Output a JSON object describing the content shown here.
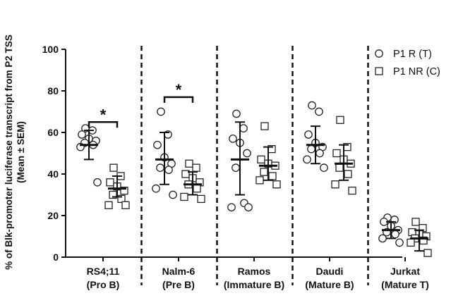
{
  "chart_data": {
    "type": "scatter",
    "title": "",
    "ylabel_lines": [
      "% of Blk-promoter luciferase transcript from P2 TSS",
      "(Mean ± SEM)"
    ],
    "ylim": [
      0,
      100
    ],
    "yticks": [
      "0",
      "20",
      "40",
      "60",
      "80",
      "100"
    ],
    "categories": [
      {
        "line1": "RS4;11",
        "line2": "(Pro B)"
      },
      {
        "line1": "Nalm-6",
        "line2": "(Pre B)"
      },
      {
        "line1": "Ramos",
        "line2": "(Immature B)"
      },
      {
        "line1": "Daudi",
        "line2": "(Mature B)"
      },
      {
        "line1": "Jurkat",
        "line2": "(Mature T)"
      }
    ],
    "legend_position": "top-right",
    "grid": false,
    "series": [
      {
        "name": "P1 R (T)",
        "marker": "circle",
        "groups": [
          {
            "mean": 54,
            "err": [
              47,
              61
            ],
            "points": [
              62,
              61,
              59,
              57,
              56,
              55,
              54,
              53,
              36
            ]
          },
          {
            "mean": 47,
            "err": [
              35,
              60
            ],
            "points": [
              70,
              59,
              54,
              48,
              45,
              43,
              42,
              33,
              30
            ]
          },
          {
            "mean": 47,
            "err": [
              30,
              65
            ],
            "points": [
              69,
              62,
              57,
              55,
              50,
              43,
              26,
              24,
              24
            ]
          },
          {
            "mean": 54,
            "err": [
              45,
              63
            ],
            "points": [
              73,
              70,
              59,
              55,
              53,
              52,
              50,
              47,
              43
            ]
          },
          {
            "mean": 13,
            "err": [
              9,
              17
            ],
            "points": [
              19,
              18,
              17,
              15,
              13,
              12,
              11,
              9,
              7
            ]
          }
        ]
      },
      {
        "name": "P1 NR (C)",
        "marker": "square",
        "groups": [
          {
            "mean": 33,
            "err": [
              29,
              39
            ],
            "points": [
              43,
              39,
              36,
              34,
              32,
              30,
              28,
              25,
              25
            ]
          },
          {
            "mean": 35,
            "err": [
              30,
              41
            ],
            "points": [
              45,
              43,
              40,
              38,
              36,
              35,
              33,
              29,
              28
            ]
          },
          {
            "mean": 44,
            "err": [
              37,
              53
            ],
            "points": [
              63,
              52,
              47,
              45,
              44,
              41,
              39,
              37,
              35
            ]
          },
          {
            "mean": 45,
            "err": [
              37,
              54
            ],
            "points": [
              66,
              53,
              50,
              47,
              45,
              43,
              40,
              35,
              32
            ]
          },
          {
            "mean": 9,
            "err": [
              3,
              13
            ],
            "points": [
              17,
              14,
              12,
              11,
              10,
              9,
              8,
              7,
              2
            ]
          }
        ]
      }
    ],
    "annotations": [
      {
        "text": "*",
        "group_index": 0,
        "bracket_y": 65
      },
      {
        "text": "*",
        "group_index": 1,
        "bracket_y": 77
      }
    ]
  }
}
